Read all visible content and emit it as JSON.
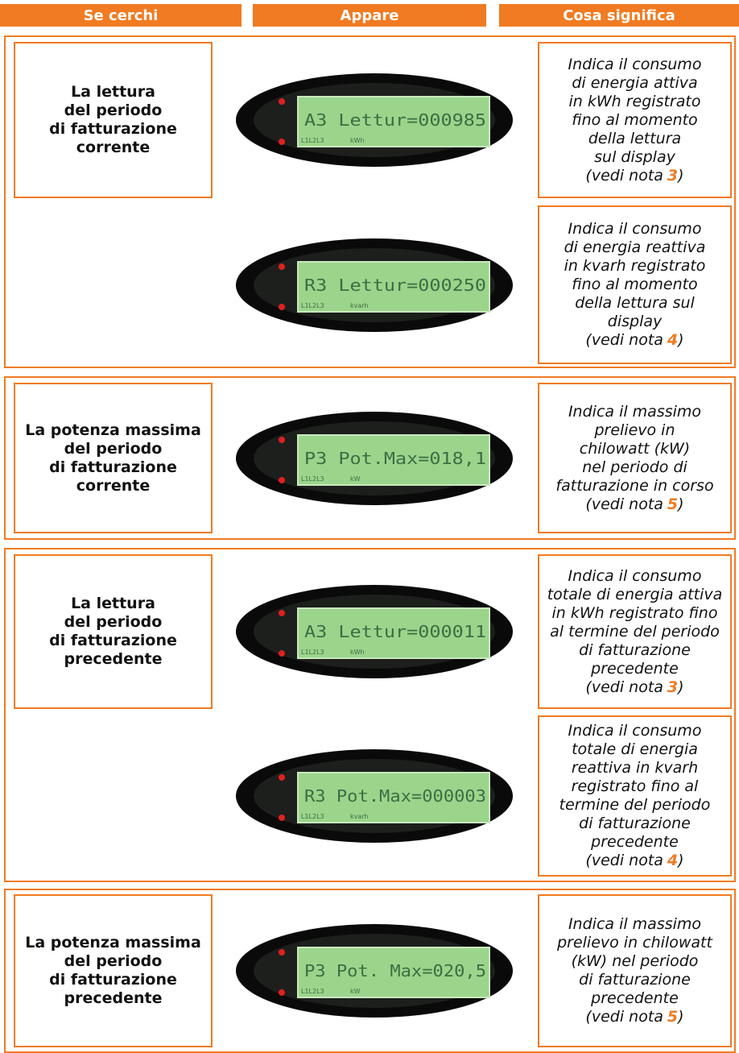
{
  "header": [
    "Se cerchi",
    "Appare",
    "Cosa significa"
  ],
  "sections": [
    {
      "label": [
        "La lettura",
        "del periodo",
        "di fatturazione",
        "corrente"
      ],
      "rows": [
        {
          "display": {
            "text": "A3 Lettur=000985",
            "phases": "L1L2L3",
            "unit": "kWh"
          },
          "meaning": [
            "Indica il consumo",
            "di energia attiva",
            "in kWh registrato",
            "fino al momento",
            "della lettura",
            "sul display"
          ],
          "note": {
            "prefix": "(vedi nota",
            "number": "3",
            "suffix": ")"
          }
        },
        {
          "display": {
            "text": "R3 Lettur=000250",
            "phases": "L1L2L3",
            "unit": "kvarh"
          },
          "meaning": [
            "Indica il consumo",
            "di energia reattiva",
            "in kvarh registrato",
            "fino al momento",
            "della lettura sul",
            "display"
          ],
          "note": {
            "prefix": "(vedi nota",
            "number": "4",
            "suffix": ")"
          }
        }
      ]
    },
    {
      "label": [
        "La potenza massima",
        "del periodo",
        "di fatturazione",
        "corrente"
      ],
      "rows": [
        {
          "display": {
            "text": "P3 Pot.Max=018,1",
            "phases": "L1L2L3",
            "unit": "kW"
          },
          "meaning": [
            "Indica il massimo",
            "prelievo in",
            "chilowatt (kW)",
            "nel periodo di",
            "fatturazione in corso"
          ],
          "note": {
            "prefix": "(vedi nota",
            "number": "5",
            "suffix": ")"
          }
        }
      ]
    },
    {
      "label": [
        "La lettura",
        "del periodo",
        "di fatturazione",
        "precedente"
      ],
      "rows": [
        {
          "display": {
            "text": "A3 Lettur=000011",
            "phases": "L1L2L3",
            "unit": "kWh"
          },
          "meaning": [
            "Indica il consumo",
            "totale di energia attiva",
            "in kWh registrato fino",
            "al termine del periodo",
            "di fatturazione",
            "precedente"
          ],
          "note": {
            "prefix": "(vedi nota",
            "number": "3",
            "suffix": ")"
          }
        },
        {
          "display": {
            "text": "R3 Pot.Max=000003",
            "phases": "L1L2L3",
            "unit": "kvarh"
          },
          "meaning": [
            "Indica il consumo",
            "totale di energia",
            "reattiva in kvarh",
            "registrato fino al",
            "termine del periodo",
            "di fatturazione",
            "precedente"
          ],
          "note": {
            "prefix": "(vedi nota",
            "number": "4",
            "suffix": ")"
          }
        }
      ]
    },
    {
      "label": [
        "La potenza massima",
        "del periodo",
        "di fatturazione",
        "precedente"
      ],
      "rows": [
        {
          "display": {
            "text": "P3 Pot. Max=020,5",
            "phases": "L1L2L3",
            "unit": "kW"
          },
          "meaning": [
            "Indica il massimo",
            "prelievo in chilowatt",
            "(kW) nel periodo",
            "di fatturazione",
            "precedente"
          ],
          "note": {
            "prefix": "(vedi nota",
            "number": "5",
            "suffix": ")"
          }
        }
      ]
    }
  ]
}
